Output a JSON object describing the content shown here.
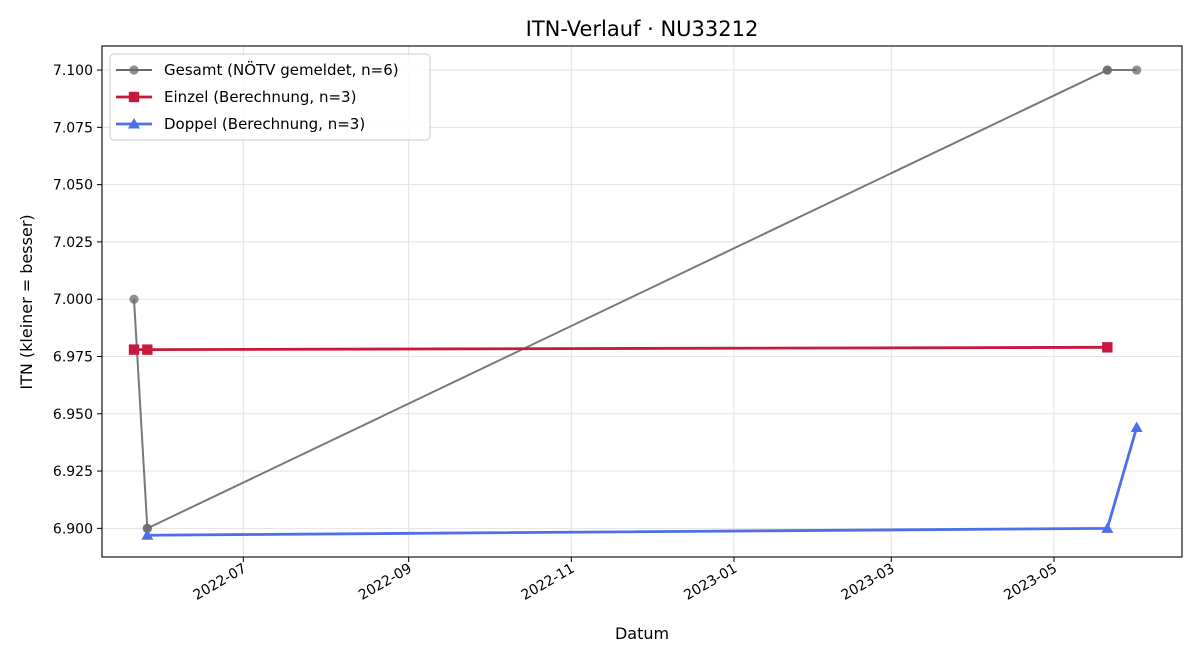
{
  "chart_data": {
    "type": "line",
    "title": "ITN-Verlauf · NU33212",
    "xlabel": "Datum",
    "ylabel": "ITN  (kleiner = besser)",
    "x_type": "date",
    "xlim": [
      "2022-05-09",
      "2023-06-18"
    ],
    "ylim": [
      6.8875,
      7.1105
    ],
    "x_ticks": [
      "2022-07",
      "2022-09",
      "2022-11",
      "2023-01",
      "2023-03",
      "2023-05"
    ],
    "x_tick_dates": [
      "2022-07-01",
      "2022-09-01",
      "2022-11-01",
      "2023-01-01",
      "2023-03-01",
      "2023-05-01"
    ],
    "y_ticks": [
      "6.900",
      "6.925",
      "6.950",
      "6.975",
      "7.000",
      "7.025",
      "7.050",
      "7.075",
      "7.100"
    ],
    "grid": true,
    "legend_position": "top-left",
    "series": [
      {
        "name": "Gesamt (NÖTV gemeldet, n=6)",
        "color": "#696969",
        "marker": "circle",
        "points": [
          {
            "x": "2022-05-21",
            "y": 7.0
          },
          {
            "x": "2022-05-26",
            "y": 6.9
          },
          {
            "x": "2022-05-26",
            "y": 6.9
          },
          {
            "x": "2023-05-21",
            "y": 7.1
          },
          {
            "x": "2023-05-21",
            "y": 7.1
          },
          {
            "x": "2023-06-01",
            "y": 7.1
          }
        ]
      },
      {
        "name": "Einzel (Berechnung, n=3)",
        "color": "#c8183c",
        "marker": "square",
        "points": [
          {
            "x": "2022-05-21",
            "y": 6.978
          },
          {
            "x": "2022-05-26",
            "y": 6.978
          },
          {
            "x": "2023-05-21",
            "y": 6.979
          }
        ]
      },
      {
        "name": "Doppel (Berechnung, n=3)",
        "color": "#4e6fe8",
        "marker": "triangle",
        "points": [
          {
            "x": "2022-05-26",
            "y": 6.897
          },
          {
            "x": "2023-05-21",
            "y": 6.9
          },
          {
            "x": "2023-06-01",
            "y": 6.944
          }
        ]
      }
    ]
  }
}
